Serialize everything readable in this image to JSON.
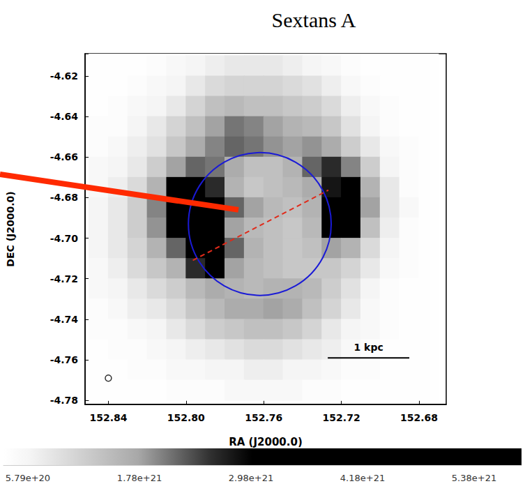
{
  "chart_data": {
    "type": "heatmap",
    "title": "Sextans A",
    "x_label": "RA (J2000.0)",
    "y_label": "DEC (J2000.0)",
    "xlim": [
      152.852,
      152.666
    ],
    "ylim": [
      -4.782,
      -4.609
    ],
    "xticks": [
      152.84,
      {
        "value": 152.8,
        "label": "152.80"
      },
      152.76,
      152.72,
      152.68
    ],
    "yticks": [
      -4.62,
      -4.64,
      -4.66,
      -4.68,
      {
        "value": -4.7,
        "label": "-4.70"
      },
      -4.72,
      -4.74,
      -4.76,
      -4.78
    ],
    "grid": false,
    "cells": {
      "x": [
        152.845,
        152.835,
        152.825,
        152.815,
        152.805,
        152.795,
        152.785,
        152.775,
        152.765,
        152.755,
        152.745,
        152.735,
        152.725,
        152.715,
        152.705,
        152.695,
        152.685,
        152.675
      ],
      "y": [
        -4.605,
        -4.615,
        -4.625,
        -4.635,
        -4.645,
        -4.655,
        -4.665,
        -4.675,
        -4.685,
        -4.695,
        -4.705,
        -4.715,
        -4.725,
        -4.735,
        -4.745,
        -4.755,
        -4.765,
        -4.775
      ],
      "values": [
        [
          3.5e+20,
          3.5e+20,
          3.5e+20,
          3.5e+20,
          3.5e+20,
          4e+20,
          4e+20,
          4.5e+20,
          5e+20,
          5e+20,
          4.5e+20,
          4e+20,
          3.5e+20,
          3.5e+20,
          3.5e+20,
          3.5e+20,
          3.5e+20,
          3.5e+20
        ],
        [
          3.5e+20,
          3.5e+20,
          3.5e+20,
          4e+20,
          5e+20,
          6e+20,
          7e+20,
          8e+20,
          8e+20,
          8e+20,
          7e+20,
          6e+20,
          5e+20,
          4e+20,
          3.5e+20,
          3.5e+20,
          3.5e+20,
          3.5e+20
        ],
        [
          3.5e+20,
          3.5e+20,
          4e+20,
          5e+20,
          6e+20,
          8e+20,
          1e+21,
          1.1e+21,
          1.1e+21,
          1.1e+21,
          1e+21,
          9e+20,
          7e+20,
          5e+20,
          4e+20,
          3.5e+20,
          3.5e+20,
          3.5e+20
        ],
        [
          3.5e+20,
          4e+20,
          5e+20,
          6e+20,
          8e+20,
          1.1e+21,
          1.4e+21,
          1.5e+21,
          1.4e+21,
          1.4e+21,
          1.3e+21,
          1.2e+21,
          1e+21,
          7e+20,
          5e+20,
          4e+20,
          3.5e+20,
          3.5e+20
        ],
        [
          4e+20,
          4e+20,
          6e+20,
          8e+20,
          1.1e+21,
          1.4e+21,
          1.8e+21,
          2.1e+21,
          2e+21,
          1.8e+21,
          1.6e+21,
          1.5e+21,
          1.3e+21,
          9e+20,
          6e+20,
          4e+20,
          3.5e+20,
          3.5e+20
        ],
        [
          4e+20,
          5e+20,
          7e+20,
          9e+20,
          1.3e+21,
          1.7e+21,
          2e+21,
          2.2e+21,
          2.1e+21,
          1.9e+21,
          1.8e+21,
          1.9e+21,
          1.7e+21,
          1.2e+21,
          8e+20,
          5e+20,
          4e+20,
          3.5e+20
        ],
        [
          5e+20,
          6e+20,
          8e+20,
          1.2e+21,
          1.8e+21,
          2.2e+21,
          2.1e+21,
          1.7e+21,
          1.4e+21,
          1.4e+21,
          1.6e+21,
          2.2e+21,
          2.6e+21,
          2e+21,
          1.2e+21,
          6e+20,
          4e+20,
          3.5e+20
        ],
        [
          5e+20,
          7e+20,
          1e+21,
          1.6e+21,
          3.2e+21,
          3.4e+21,
          2.6e+21,
          1.6e+21,
          1.3e+21,
          1.4e+21,
          1.5e+21,
          1.7e+21,
          2.8e+21,
          3.5e+21,
          1.6e+21,
          8e+20,
          4e+20,
          3.5e+20
        ],
        [
          6e+20,
          8e+20,
          1.2e+21,
          2e+21,
          3.8e+21,
          4e+21,
          3e+21,
          2.2e+21,
          1.8e+21,
          1.5e+21,
          1.4e+21,
          1.6e+21,
          3.4e+21,
          4.2e+21,
          1.8e+21,
          8e+20,
          5e+20,
          3.5e+20
        ],
        [
          6e+20,
          8e+20,
          1.2e+21,
          1.9e+21,
          3.4e+21,
          3.6e+21,
          3.6e+21,
          1.8e+21,
          1.5e+21,
          1.4e+21,
          1.3e+21,
          1.5e+21,
          3e+21,
          3.6e+21,
          1.4e+21,
          7e+20,
          4e+20,
          3.5e+20
        ],
        [
          6e+20,
          8e+20,
          1.1e+21,
          1.6e+21,
          2.2e+21,
          3.4e+21,
          4.2e+21,
          2.2e+21,
          1.6e+21,
          1.4e+21,
          1.3e+21,
          1.4e+21,
          1.8e+21,
          1.6e+21,
          1e+21,
          6e+20,
          4e+20,
          3.5e+20
        ],
        [
          5e+20,
          7e+20,
          1e+21,
          1.3e+21,
          1.6e+21,
          2.6e+21,
          3.8e+21,
          1.8e+21,
          1.5e+21,
          1.4e+21,
          1.3e+21,
          1.3e+21,
          1.3e+21,
          1.1e+21,
          8e+20,
          5e+20,
          4e+20,
          3.5e+20
        ],
        [
          5e+20,
          6e+20,
          8e+20,
          1e+21,
          1.2e+21,
          1.5e+21,
          1.7e+21,
          1.6e+21,
          1.5e+21,
          1.6e+21,
          1.6e+21,
          1.5e+21,
          1.2e+21,
          9e+20,
          6e+20,
          4e+20,
          3.5e+20,
          3.5e+20
        ],
        [
          4e+20,
          5e+20,
          7e+20,
          8e+20,
          1e+21,
          1.3e+21,
          1.5e+21,
          1.7e+21,
          1.7e+21,
          1.8e+21,
          1.7e+21,
          1.4e+21,
          1.1e+21,
          8e+20,
          5e+20,
          4e+20,
          3.5e+20,
          3.5e+20
        ],
        [
          4e+20,
          4e+20,
          5e+20,
          6e+20,
          8e+20,
          1e+21,
          1.2e+21,
          1.3e+21,
          1.4e+21,
          1.4e+21,
          1.3e+21,
          1.1e+21,
          8e+20,
          6e+20,
          5e+20,
          4e+20,
          3.5e+20,
          3.5e+20
        ],
        [
          3.5e+20,
          4e+20,
          4e+20,
          5e+20,
          6e+20,
          7e+20,
          8e+20,
          9e+20,
          1e+21,
          1e+21,
          9e+20,
          8e+20,
          7e+20,
          5e+20,
          4e+20,
          3.5e+20,
          3.5e+20,
          3.5e+20
        ],
        [
          3.5e+20,
          3.5e+20,
          4e+20,
          4e+20,
          5e+20,
          5e+20,
          6e+20,
          6e+20,
          7e+20,
          7e+20,
          6e+20,
          6e+20,
          5e+20,
          4e+20,
          4e+20,
          3.5e+20,
          3.5e+20,
          3.5e+20
        ],
        [
          3.5e+20,
          3.5e+20,
          3.5e+20,
          3.5e+20,
          4e+20,
          4e+20,
          4e+20,
          5e+20,
          5e+20,
          5e+20,
          5e+20,
          4e+20,
          4e+20,
          3.5e+20,
          3.5e+20,
          3.5e+20,
          3.5e+20,
          3.5e+20
        ]
      ]
    },
    "colorbar": {
      "range": [
        3.17e+20,
        5.89e+21
      ],
      "ticks": [
        {
          "value": 5.79e+20,
          "label": "5.79e+20"
        },
        {
          "value": 1.78e+21,
          "label": "1.78e+21"
        },
        {
          "value": 2.98e+21,
          "label": "2.98e+21"
        },
        {
          "value": 4.18e+21,
          "label": "4.18e+21"
        },
        {
          "value": 5.38e+21,
          "label": "5.38e+21"
        }
      ]
    },
    "annotations": {
      "circle": {
        "center_x": 152.762,
        "center_y": -4.693,
        "radius_x": 0.037,
        "radius_y": 0.035,
        "color": "#1a1ad6"
      },
      "dashed_line": {
        "x": [
          152.7965,
          152.7267
        ],
        "y": [
          -4.7109,
          -4.6763
        ],
        "color": "#e02a1a",
        "line_style": "dashed"
      },
      "pointer": {
        "x": 152.773,
        "y": -4.686,
        "color": "#ff2a00"
      },
      "scale_bar": {
        "label": "1 kpc",
        "x": [
          152.727,
          152.685
        ],
        "y": -4.759
      },
      "beam": {
        "x": 152.84,
        "y": -4.769
      }
    }
  }
}
